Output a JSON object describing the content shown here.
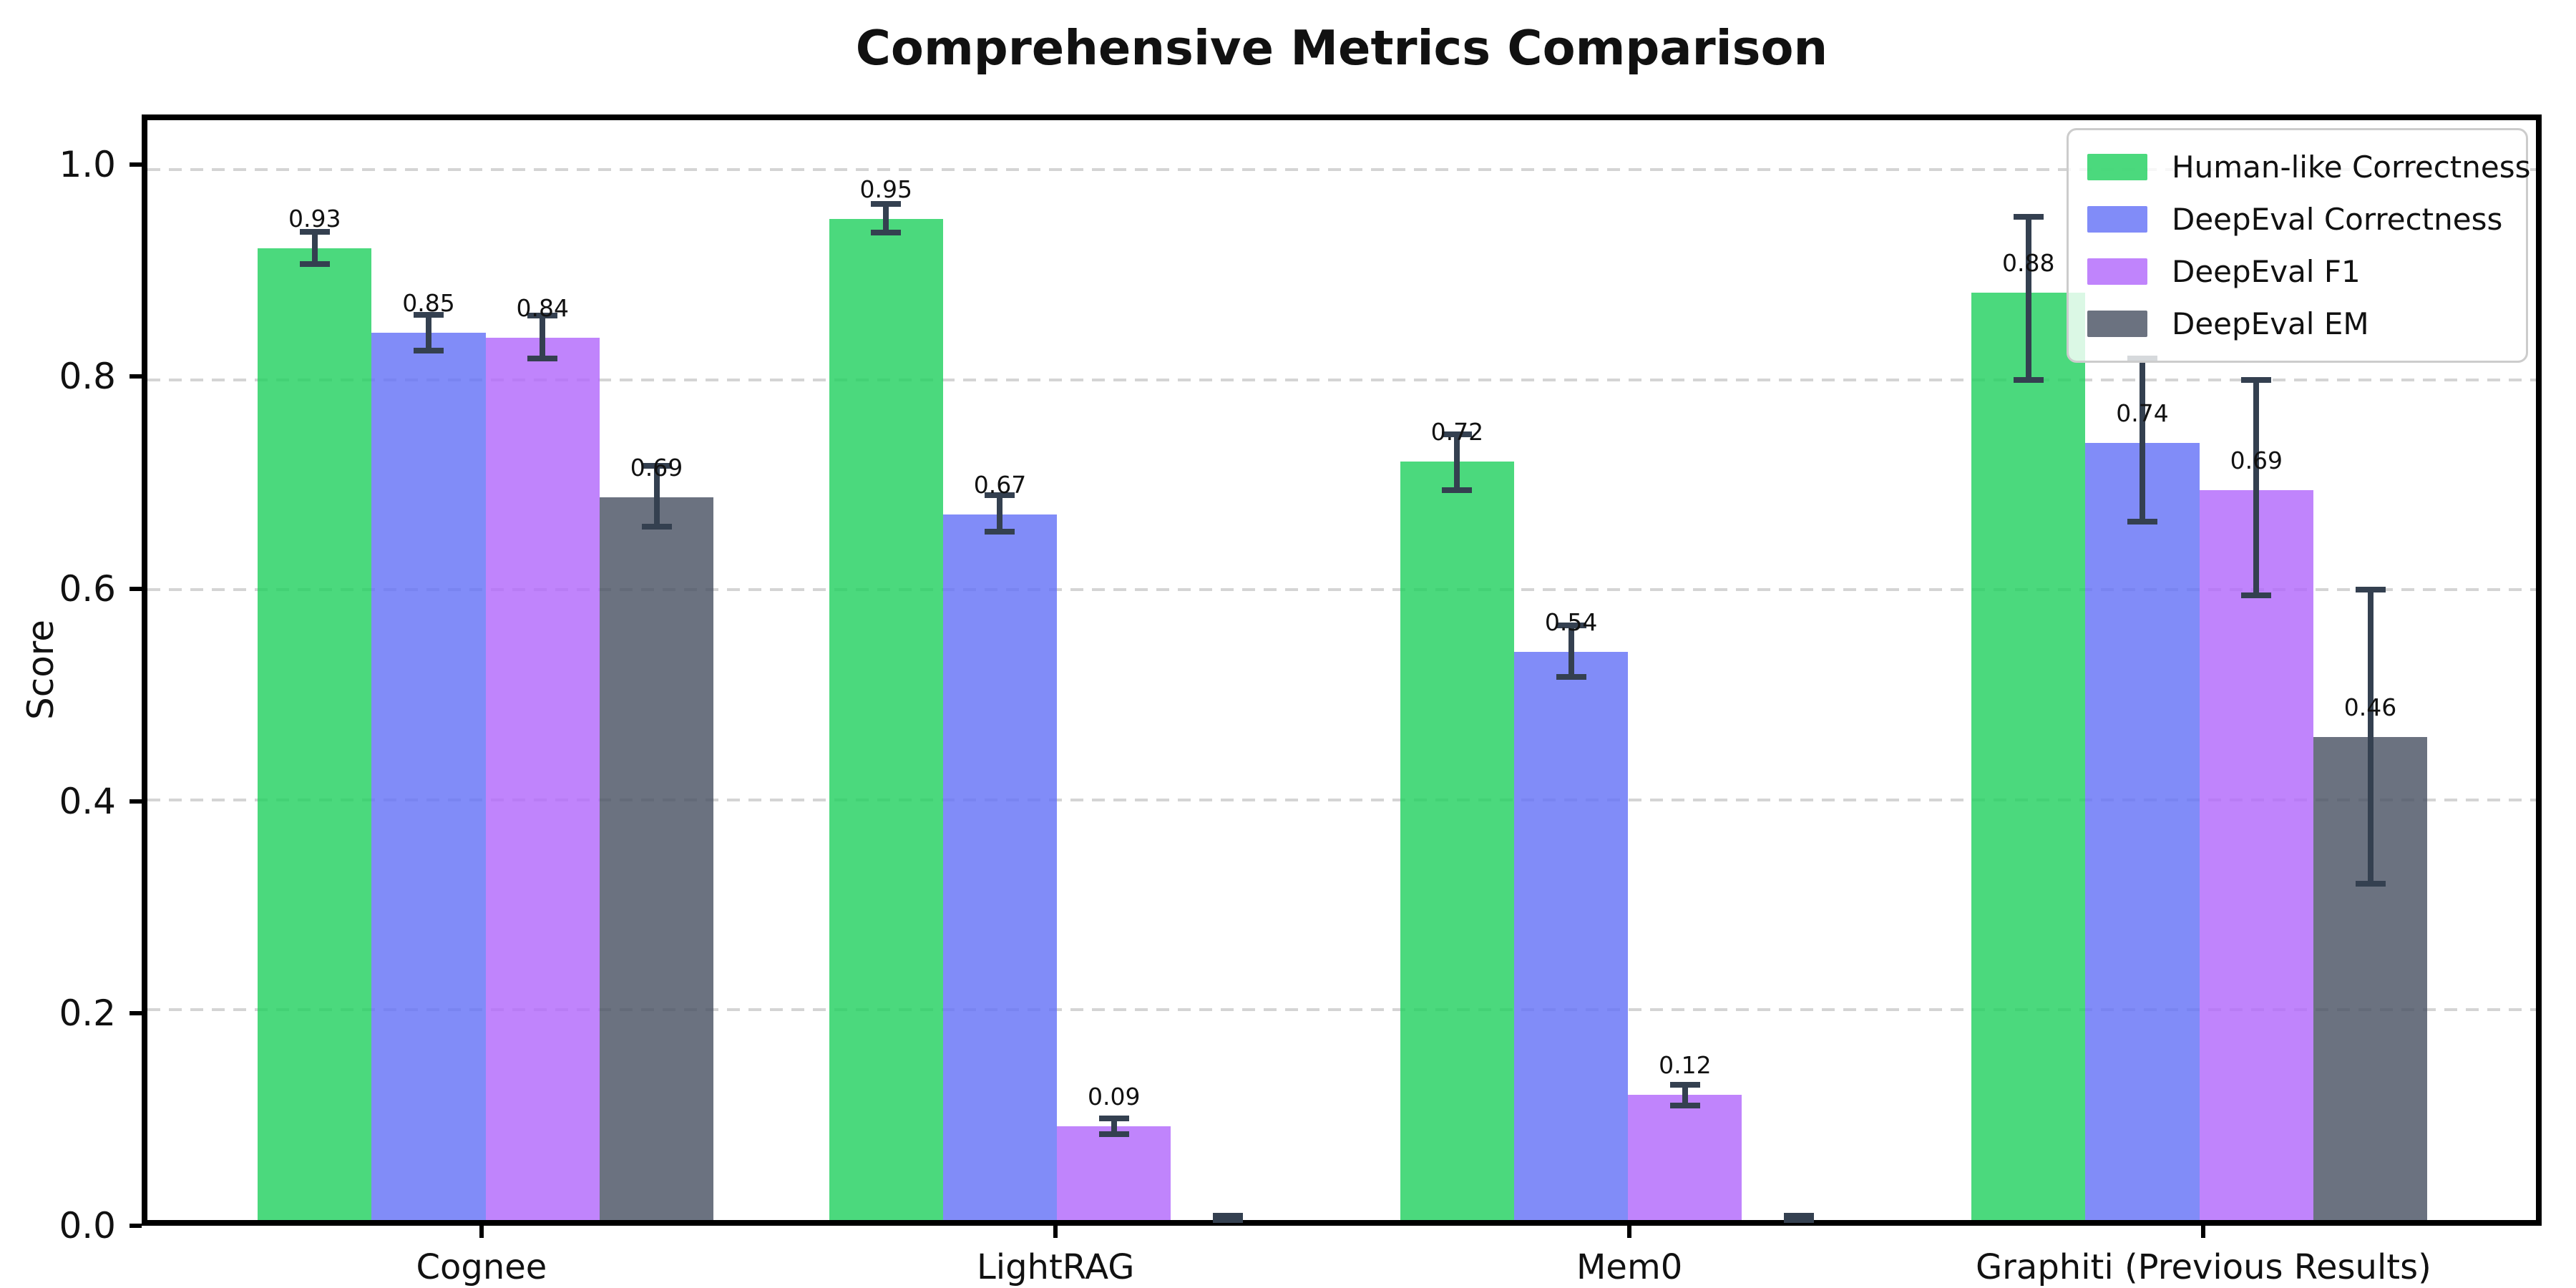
{
  "title": "Comprehensive Metrics Comparison",
  "chart_data": {
    "type": "bar",
    "title": "Comprehensive Metrics Comparison",
    "xlabel": "",
    "ylabel": "Score",
    "ylim": [
      0,
      1.047
    ],
    "yticks": [
      0.0,
      0.2,
      0.4,
      0.6,
      0.8,
      1.0
    ],
    "grid": "horizontal-dashed",
    "grid_color": "#d4d4d4",
    "legend_position": "upper-right",
    "error_color": "#344050",
    "bar_alpha": 0.8,
    "categories": [
      "Cognee",
      "LightRAG",
      "Mem0",
      "Graphiti (Previous Results)"
    ],
    "series": [
      {
        "name": "Human-like Correctness",
        "color": "#1ecf5c",
        "values": [
          0.925,
          0.953,
          0.722,
          0.883
        ],
        "labels": [
          "0.93",
          "0.95",
          "0.72",
          "0.88"
        ],
        "error_lo": [
          0.91,
          0.94,
          0.695,
          0.8
        ],
        "error_hi": [
          0.941,
          0.967,
          0.748,
          0.955
        ]
      },
      {
        "name": "DeepEval Correctness",
        "color": "#616ff6",
        "values": [
          0.845,
          0.672,
          0.541,
          0.74
        ],
        "labels": [
          "0.85",
          "0.67",
          "0.54",
          "0.74"
        ],
        "error_lo": [
          0.828,
          0.655,
          0.517,
          0.665
        ],
        "error_hi": [
          0.862,
          0.69,
          0.566,
          0.82
        ]
      },
      {
        "name": "DeepEval F1",
        "color": "#b065fb",
        "values": [
          0.84,
          0.089,
          0.119,
          0.695
        ],
        "labels": [
          "0.84",
          "0.09",
          "0.12",
          "0.69"
        ],
        "error_lo": [
          0.82,
          0.082,
          0.109,
          0.595
        ],
        "error_hi": [
          0.861,
          0.097,
          0.129,
          0.8
        ]
      },
      {
        "name": "DeepEval EM",
        "color": "#464f60",
        "values": [
          0.688,
          0.0,
          0.0,
          0.46
        ],
        "labels": [
          "0.69",
          null,
          null,
          "0.46"
        ],
        "error_lo": [
          0.66,
          0.0,
          0.0,
          0.32
        ],
        "error_hi": [
          0.718,
          0.004,
          0.004,
          0.6
        ]
      }
    ],
    "layout": {
      "group_centers_pct": [
        14.16,
        38.08,
        61.99,
        85.91
      ],
      "bar_offsets_pct": [
        -7.156,
        -2.386,
        2.386,
        7.156
      ],
      "bar_width_pct": 4.77
    }
  }
}
